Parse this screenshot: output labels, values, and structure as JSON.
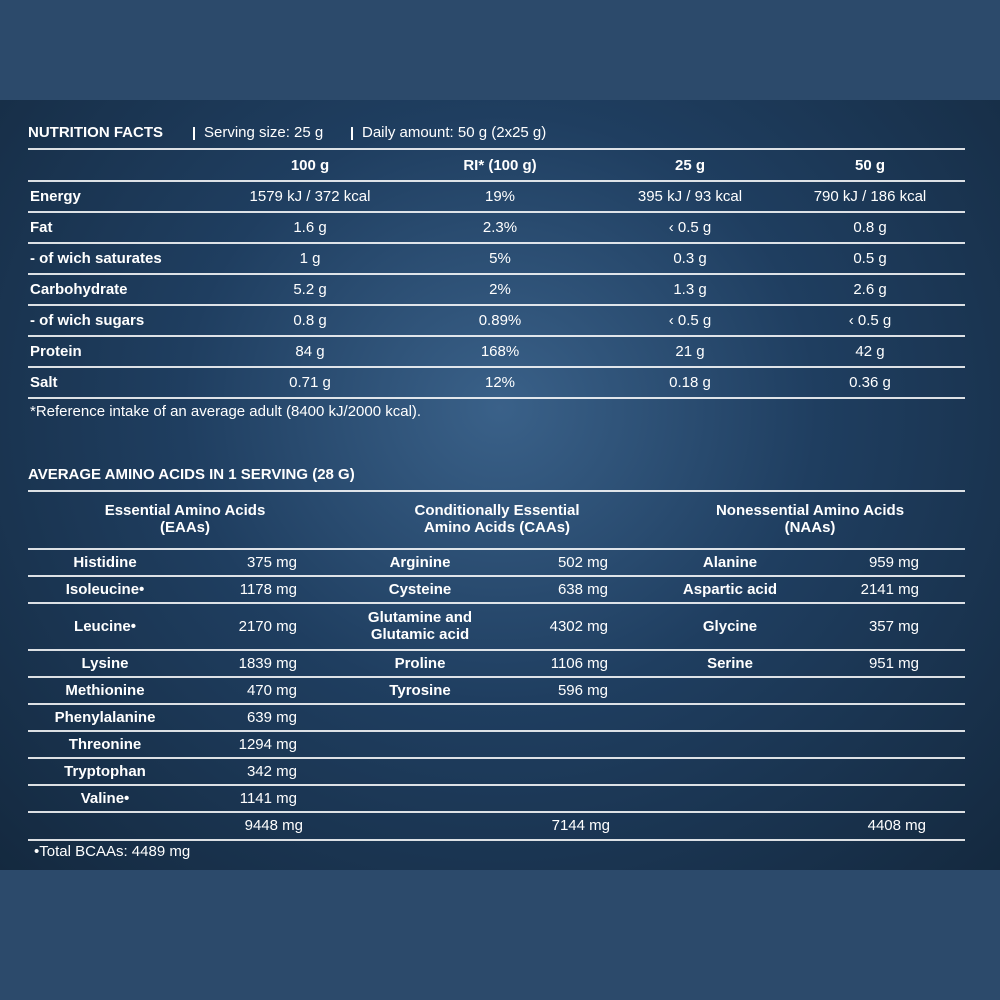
{
  "nutrition": {
    "title": "NUTRITION FACTS",
    "serving": "Serving size: 25 g",
    "daily": "Daily amount: 50 g (2x25 g)",
    "columns": [
      "100 g",
      "RI* (100 g)",
      "25 g",
      "50 g"
    ],
    "rows": [
      [
        "Energy",
        "1579 kJ / 372 kcal",
        "19%",
        "395 kJ / 93 kcal",
        "790 kJ / 186 kcal"
      ],
      [
        "Fat",
        "1.6 g",
        "2.3%",
        "‹ 0.5 g",
        "0.8 g"
      ],
      [
        "- of wich saturates",
        "1 g",
        "5%",
        "0.3 g",
        "0.5 g"
      ],
      [
        "Carbohydrate",
        "5.2 g",
        "2%",
        "1.3 g",
        "2.6 g"
      ],
      [
        "- of wich sugars",
        "0.8 g",
        "0.89%",
        "‹ 0.5 g",
        "‹ 0.5 g"
      ],
      [
        "Protein",
        "84 g",
        "168%",
        "21 g",
        "42 g"
      ],
      [
        "Salt",
        "0.71 g",
        "12%",
        "0.18 g",
        "0.36 g"
      ]
    ],
    "footnote": "*Reference intake of an average adult (8400 kJ/2000 kcal)."
  },
  "amino": {
    "title": "AVERAGE AMINO ACIDS IN 1 SERVING (28 G)",
    "groups": [
      "Essential Amino Acids (EAAs)",
      "Conditionally Essential Amino Acids (CAAs)",
      "Nonessential Amino Acids (NAAs)"
    ],
    "rows": [
      [
        "Histidine",
        "375 mg",
        "Arginine",
        "502 mg",
        "Alanine",
        "959 mg"
      ],
      [
        "Isoleucine•",
        "1178 mg",
        "Cysteine",
        "638 mg",
        "Aspartic acid",
        "2141 mg"
      ],
      [
        "Leucine•",
        "2170 mg",
        "Glutamine and Glutamic acid",
        "4302 mg",
        "Glycine",
        "357 mg"
      ],
      [
        "Lysine",
        "1839 mg",
        "Proline",
        "1106 mg",
        "Serine",
        "951 mg"
      ],
      [
        "Methionine",
        "470 mg",
        "Tyrosine",
        "596 mg",
        null,
        null
      ],
      [
        "Phenylalanine",
        "639 mg",
        null,
        null,
        null,
        null
      ],
      [
        "Threonine",
        "1294 mg",
        null,
        null,
        null,
        null
      ],
      [
        "Tryptophan",
        "342 mg",
        null,
        null,
        null,
        null
      ],
      [
        "Valine•",
        "1141 mg",
        null,
        null,
        null,
        null
      ]
    ],
    "totals": [
      "9448 mg",
      "7144 mg",
      "4408 mg"
    ],
    "footnote": "•Total BCAAs: 4489  mg"
  }
}
